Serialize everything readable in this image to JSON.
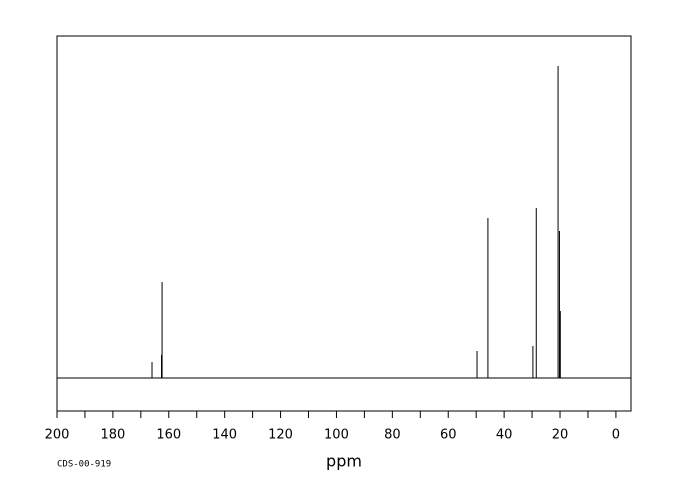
{
  "chart_data": {
    "type": "spectrum",
    "xlabel": "ppm",
    "code": "CDS-00-919",
    "x": [
      166.0,
      162.4,
      162.6,
      49.7,
      45.8,
      29.7,
      28.5,
      20.7,
      20.2,
      19.9
    ],
    "values": [
      16,
      96,
      23,
      27,
      160,
      32,
      170,
      312,
      147,
      67
    ],
    "color": "#000000",
    "xlim": [
      200,
      -5.4
    ],
    "ylim": [
      -33,
      342
    ],
    "xticks": [
      200,
      180,
      160,
      140,
      120,
      100,
      80,
      60,
      40,
      20,
      0
    ],
    "xminorticks": [
      190,
      170,
      150,
      130,
      110,
      90,
      70,
      50,
      30,
      10
    ]
  }
}
